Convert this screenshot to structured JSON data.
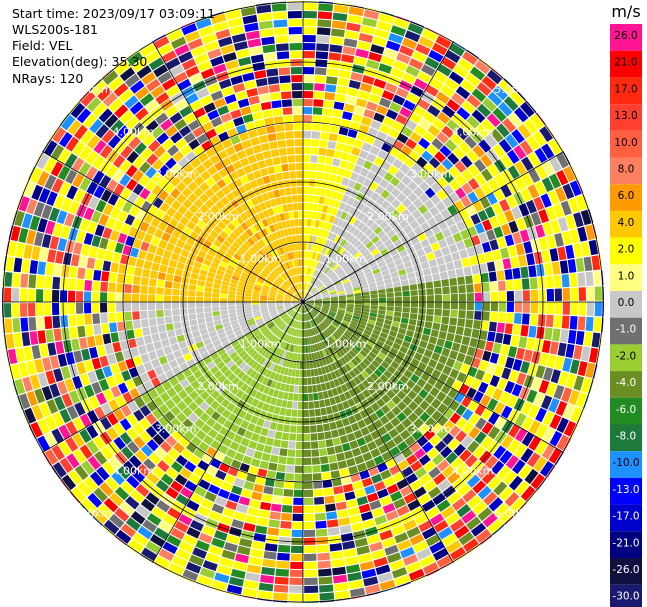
{
  "header": {
    "start_time": "Start time: 2023/09/17 03:09:11",
    "site": "WLS200s-181",
    "field": "Field: VEL",
    "elevation": "Elevation(deg): 35.30",
    "nrays": "NRays: 120"
  },
  "colorbar": {
    "unit": "m/s",
    "ticks": [
      "26.0",
      "21.0",
      "17.0",
      "13.0",
      "10.0",
      "8.0",
      "6.0",
      "4.0",
      "2.0",
      "1.0",
      "0.0",
      "-1.0",
      "-2.0",
      "-4.0",
      "-6.0",
      "-8.0",
      "-10.0",
      "-13.0",
      "-17.0",
      "-21.0",
      "-26.0",
      "-30.0"
    ],
    "colors": [
      "#ff1493",
      "#ff0000",
      "#ff2a10",
      "#ff4030",
      "#ff6040",
      "#ff8060",
      "#ff9a00",
      "#ffc800",
      "#ffff00",
      "#ffff80",
      "#c8c8c8",
      "#707070",
      "#9acd32",
      "#6b8e23",
      "#228b22",
      "#1e7a3a",
      "#1e90ff",
      "#0000ff",
      "#0000cd",
      "#000080",
      "#101040",
      "#191970"
    ]
  },
  "chart_data": {
    "type": "heatmap",
    "projection": "polar PPI",
    "field": "VEL",
    "unit": "m/s",
    "n_rays": 120,
    "range_rings_km": [
      1.0,
      2.0,
      3.0,
      4.0,
      5.0
    ],
    "ring_labels": [
      "1.00km",
      "2.00km",
      "3.00km",
      "4.00km",
      "5.00km"
    ],
    "spokes_deg": [
      0,
      30,
      60,
      90,
      120,
      150,
      180,
      210,
      240,
      270,
      300,
      330
    ],
    "sectors": [
      {
        "azimuth_from": 270,
        "azimuth_to": 360,
        "velocity": 4.0
      },
      {
        "azimuth_from": 0,
        "azimuth_to": 20,
        "velocity": 2.0
      },
      {
        "azimuth_from": 20,
        "azimuth_to": 80,
        "velocity": 0.0
      },
      {
        "azimuth_from": 80,
        "azimuth_to": 180,
        "velocity": -4.0
      },
      {
        "azimuth_from": 180,
        "azimuth_to": 240,
        "velocity": -2.0
      },
      {
        "azimuth_from": 240,
        "azimuth_to": 270,
        "velocity": 0.0
      }
    ],
    "clutter_beyond_km": 3.2
  }
}
